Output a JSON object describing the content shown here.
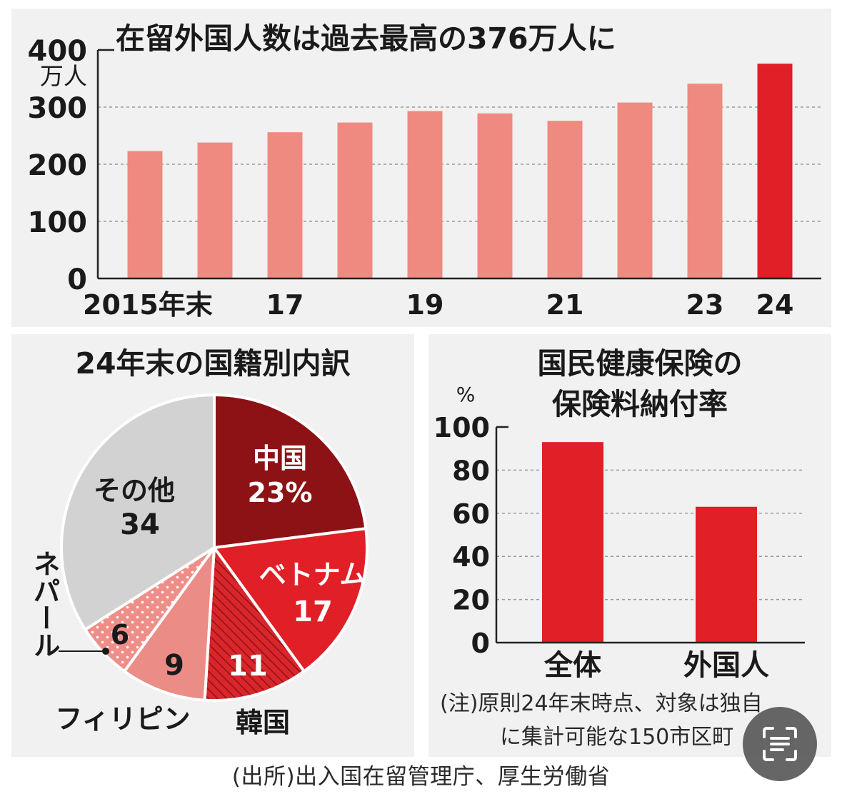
{
  "colors": {
    "panel_bg": "#f1f1f1",
    "bar_light": "#ef8a80",
    "bar_highlight": "#e01f26",
    "china": "#8c1215",
    "vietnam": "#e01f26",
    "korea": "#d9262b",
    "philippines": "#ec8c86",
    "nepal": "#ef8e88",
    "other": "#d2d2d2"
  },
  "chart_data": [
    {
      "type": "bar",
      "title": "在留外国人数は過去最高の376万人に",
      "ylabel": "万人",
      "categories": [
        "2015",
        "2016",
        "2017",
        "2018",
        "2019",
        "2020",
        "2021",
        "2022",
        "2023",
        "2024"
      ],
      "tick_labels": [
        "2015年末",
        "",
        "17",
        "",
        "19",
        "",
        "21",
        "",
        "23",
        "24"
      ],
      "values": [
        223,
        238,
        256,
        273,
        293,
        289,
        276,
        308,
        341,
        376
      ],
      "highlight_index": 9,
      "yticks": [
        0,
        100,
        200,
        300,
        400
      ],
      "ylim": [
        0,
        400
      ],
      "grid": true
    },
    {
      "type": "pie",
      "title": "24年末の国籍別内訳",
      "slices": [
        {
          "label": "中国",
          "value": 23,
          "value_label": "23%",
          "color": "#8c1215",
          "pattern": "solid"
        },
        {
          "label": "ベトナム",
          "value": 17,
          "value_label": "17",
          "color": "#e01f26",
          "pattern": "solid"
        },
        {
          "label": "韓国",
          "value": 11,
          "value_label": "11",
          "color": "#d9262b",
          "pattern": "hatch"
        },
        {
          "label": "フィリピン",
          "value": 9,
          "value_label": "9",
          "color": "#ec8c86",
          "pattern": "solid"
        },
        {
          "label": "ネパール",
          "value": 6,
          "value_label": "6",
          "color": "#ef8e88",
          "pattern": "dots"
        },
        {
          "label": "その他",
          "value": 34,
          "value_label": "34",
          "color": "#d2d2d2",
          "pattern": "solid"
        }
      ]
    },
    {
      "type": "bar",
      "title_lines": [
        "国民健康保険の",
        "保険料納付率"
      ],
      "ylabel": "%",
      "categories": [
        "全体",
        "外国人"
      ],
      "values": [
        93,
        63
      ],
      "yticks": [
        0,
        20,
        40,
        60,
        80,
        100
      ],
      "ylim": [
        0,
        100
      ],
      "grid": true,
      "note_lines": [
        "(注)原則24年末時点、対象は独自",
        "に集計可能な150市区町"
      ]
    }
  ],
  "source": "(出所)出入国在留管理庁、厚生労働省",
  "overlay_icon": "text-scan-icon"
}
